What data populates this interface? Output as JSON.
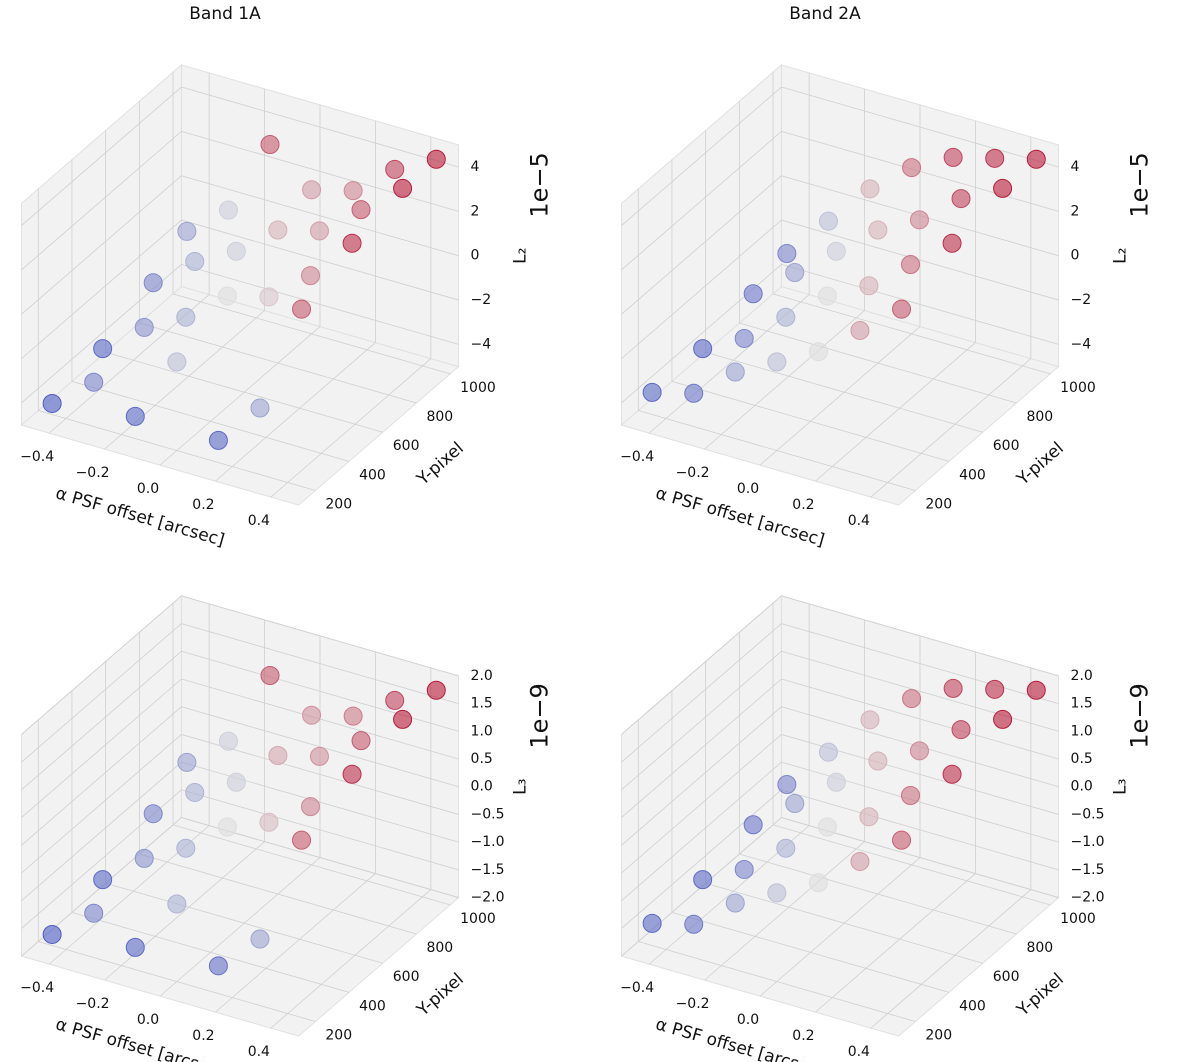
{
  "chart_data": [
    {
      "type": "scatter3d",
      "title": "Band 1A",
      "xlabel": "α PSF offset [arcsec]",
      "ylabel": "Y-pixel",
      "zlabel": "L₂",
      "offset_label": "1e−5",
      "colormap": "coolwarm",
      "x": [
        -0.45,
        -0.3,
        -0.15,
        0,
        0.15,
        0.3,
        0.45,
        -0.45,
        -0.3,
        -0.15,
        0,
        0.15,
        0.3,
        0.45,
        -0.45,
        -0.3,
        -0.15,
        0,
        0.15,
        0.3,
        0.45,
        -0.45,
        -0.3,
        -0.15,
        0,
        0.15,
        0.3,
        0.45
      ],
      "y": [
        200,
        200,
        200,
        200,
        200,
        200,
        200,
        500,
        500,
        500,
        500,
        500,
        500,
        500,
        800,
        800,
        800,
        800,
        800,
        800,
        800,
        1000,
        1000,
        1000,
        1000,
        1000,
        1000,
        1000
      ],
      "z": [
        -4.5,
        -3,
        -4,
        -1,
        -4,
        -2,
        3,
        -4,
        -2.5,
        -1.5,
        0,
        0.5,
        2,
        4,
        -3,
        -1.5,
        -0.5,
        1,
        1.5,
        3,
        4.5,
        -2,
        -0.5,
        3,
        1.5,
        2,
        3.5,
        4.5
      ],
      "xlim": [
        -0.5,
        0.5
      ],
      "ylim": [
        100,
        1050
      ],
      "zlim": [
        -5,
        5
      ],
      "xticks": [
        {
          "value": -0.4,
          "label": "−0.4"
        },
        {
          "value": -0.2,
          "label": "−0.2"
        },
        {
          "value": 0,
          "label": "0.0"
        },
        0.2,
        0.4
      ],
      "yticks": [
        200,
        400,
        600,
        800,
        1000
      ],
      "zticks": [
        {
          "value": -4,
          "label": "−4"
        },
        {
          "value": -2,
          "label": "−2"
        },
        0,
        2,
        4
      ]
    },
    {
      "type": "scatter3d",
      "title": "Band 2A",
      "xlabel": "α PSF offset [arcsec]",
      "ylabel": "Y-pixel",
      "zlabel": "L₂",
      "offset_label": "1e−5",
      "colormap": "coolwarm",
      "x": [
        -0.45,
        -0.3,
        -0.15,
        0,
        0.15,
        0.3,
        0.45,
        -0.45,
        -0.3,
        -0.15,
        0,
        0.15,
        0.3,
        0.45,
        -0.45,
        -0.3,
        -0.15,
        0,
        0.15,
        0.3,
        0.45,
        -0.45,
        -0.3,
        -0.15,
        0,
        0.15,
        0.3,
        0.45
      ],
      "y": [
        200,
        200,
        200,
        200,
        200,
        200,
        200,
        500,
        500,
        500,
        500,
        500,
        500,
        500,
        800,
        800,
        800,
        800,
        800,
        800,
        800,
        1000,
        1000,
        1000,
        1000,
        1000,
        1000,
        1000
      ],
      "z": [
        -4,
        -3.5,
        -2,
        -1,
        0,
        1.5,
        3,
        -4,
        -3,
        -1.5,
        0,
        1,
        2.5,
        4,
        -3.5,
        -2,
        -0.5,
        1,
        2,
        3.5,
        4.5,
        -3,
        -1,
        1,
        2.5,
        3.5,
        4,
        4.5
      ],
      "xlim": [
        -0.5,
        0.5
      ],
      "ylim": [
        100,
        1050
      ],
      "zlim": [
        -5,
        5
      ],
      "xticks": [
        {
          "value": -0.4,
          "label": "−0.4"
        },
        {
          "value": -0.2,
          "label": "−0.2"
        },
        {
          "value": 0,
          "label": "0.0"
        },
        0.2,
        0.4
      ],
      "yticks": [
        200,
        400,
        600,
        800,
        1000
      ],
      "zticks": [
        {
          "value": -4,
          "label": "−4"
        },
        {
          "value": -2,
          "label": "−2"
        },
        0,
        2,
        4
      ]
    },
    {
      "type": "scatter3d",
      "xlabel": "α PSF offset [arcsec]",
      "ylabel": "Y-pixel",
      "zlabel": "L₃",
      "offset_label": "1e−9",
      "colormap": "coolwarm",
      "x": [
        -0.45,
        -0.3,
        -0.15,
        0,
        0.15,
        0.3,
        0.45,
        -0.45,
        -0.3,
        -0.15,
        0,
        0.15,
        0.3,
        0.45,
        -0.45,
        -0.3,
        -0.15,
        0,
        0.15,
        0.3,
        0.45,
        -0.45,
        -0.3,
        -0.15,
        0,
        0.15,
        0.3,
        0.45
      ],
      "y": [
        200,
        200,
        200,
        200,
        200,
        200,
        200,
        500,
        500,
        500,
        500,
        500,
        500,
        500,
        800,
        800,
        800,
        800,
        800,
        800,
        800,
        1000,
        1000,
        1000,
        1000,
        1000,
        1000,
        1000
      ],
      "z": [
        -1.8,
        -1.2,
        -1.6,
        -0.6,
        -1.5,
        -0.8,
        1.2,
        -1.6,
        -1,
        -0.6,
        0,
        0.3,
        0.8,
        1.6,
        -1.2,
        -0.6,
        -0.2,
        0.5,
        0.7,
        1.2,
        1.8,
        -0.8,
        -0.2,
        1.2,
        0.7,
        0.9,
        1.4,
        1.8
      ],
      "xlim": [
        -0.5,
        0.5
      ],
      "ylim": [
        100,
        1050
      ],
      "zlim": [
        -2,
        2
      ],
      "xticks": [
        {
          "value": -0.4,
          "label": "−0.4"
        },
        {
          "value": -0.2,
          "label": "−0.2"
        },
        {
          "value": 0,
          "label": "0.0"
        },
        0.2,
        0.4
      ],
      "yticks": [
        200,
        400,
        600,
        800,
        1000
      ],
      "zticks": [
        {
          "value": -2,
          "label": "−2.0"
        },
        {
          "value": -1.5,
          "label": "−1.5"
        },
        {
          "value": -1,
          "label": "−1.0"
        },
        {
          "value": -0.5,
          "label": "−0.5"
        },
        {
          "value": 0,
          "label": "0.0"
        },
        0.5,
        {
          "value": 1,
          "label": "1.0"
        },
        1.5,
        {
          "value": 2,
          "label": "2.0"
        }
      ]
    },
    {
      "type": "scatter3d",
      "xlabel": "α PSF offset [arcsec]",
      "ylabel": "Y-pixel",
      "zlabel": "L₃",
      "offset_label": "1e−9",
      "colormap": "coolwarm",
      "x": [
        -0.45,
        -0.3,
        -0.15,
        0,
        0.15,
        0.3,
        0.45,
        -0.45,
        -0.3,
        -0.15,
        0,
        0.15,
        0.3,
        0.45,
        -0.45,
        -0.3,
        -0.15,
        0,
        0.15,
        0.3,
        0.45,
        -0.45,
        -0.3,
        -0.15,
        0,
        0.15,
        0.3,
        0.45
      ],
      "y": [
        200,
        200,
        200,
        200,
        200,
        200,
        200,
        500,
        500,
        500,
        500,
        500,
        500,
        500,
        800,
        800,
        800,
        800,
        800,
        800,
        800,
        1000,
        1000,
        1000,
        1000,
        1000,
        1000,
        1000
      ],
      "z": [
        -1.6,
        -1.4,
        -0.8,
        -0.4,
        0,
        0.6,
        1.2,
        -1.6,
        -1.2,
        -0.6,
        0,
        0.4,
        1,
        1.6,
        -1.4,
        -0.8,
        -0.2,
        0.4,
        0.8,
        1.4,
        1.8,
        -1.2,
        -0.4,
        0.4,
        1,
        1.4,
        1.6,
        1.8
      ],
      "xlim": [
        -0.5,
        0.5
      ],
      "ylim": [
        100,
        1050
      ],
      "zlim": [
        -2,
        2
      ],
      "xticks": [
        {
          "value": -0.4,
          "label": "−0.4"
        },
        {
          "value": -0.2,
          "label": "−0.2"
        },
        {
          "value": 0,
          "label": "0.0"
        },
        0.2,
        0.4
      ],
      "yticks": [
        200,
        400,
        600,
        800,
        1000
      ],
      "zticks": [
        {
          "value": -2,
          "label": "−2.0"
        },
        {
          "value": -1.5,
          "label": "−1.5"
        },
        {
          "value": -1,
          "label": "−1.0"
        },
        {
          "value": -0.5,
          "label": "−0.5"
        },
        {
          "value": 0,
          "label": "0.0"
        },
        0.5,
        {
          "value": 1,
          "label": "1.0"
        },
        1.5,
        {
          "value": 2,
          "label": "2.0"
        }
      ]
    }
  ]
}
